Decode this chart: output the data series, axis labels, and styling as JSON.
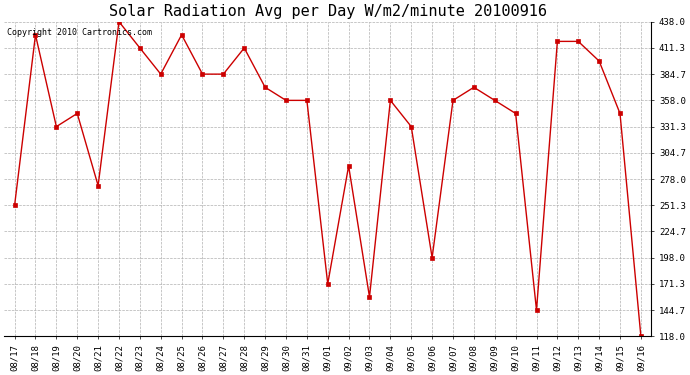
{
  "title": "Solar Radiation Avg per Day W/m2/minute 20100916",
  "copyright": "Copyright 2010 Cartronics.com",
  "labels": [
    "08/17",
    "08/18",
    "08/19",
    "08/20",
    "08/21",
    "08/22",
    "08/23",
    "08/24",
    "08/25",
    "08/26",
    "08/27",
    "08/28",
    "08/29",
    "08/30",
    "08/31",
    "09/01",
    "09/02",
    "09/03",
    "09/04",
    "09/05",
    "09/06",
    "09/07",
    "09/08",
    "09/09",
    "09/10",
    "09/11",
    "09/12",
    "09/13",
    "09/14",
    "09/15",
    "09/16"
  ],
  "values": [
    251.3,
    424.7,
    331.3,
    344.7,
    271.3,
    438.0,
    411.3,
    384.7,
    424.7,
    384.7,
    384.7,
    411.3,
    371.3,
    358.0,
    358.0,
    171.3,
    291.3,
    158.0,
    358.0,
    331.3,
    198.0,
    358.0,
    371.3,
    358.0,
    344.7,
    144.7,
    418.0,
    418.0,
    398.0,
    344.7,
    118.0
  ],
  "line_color": "#cc0000",
  "marker_color": "#cc0000",
  "bg_color": "#ffffff",
  "grid_color": "#b0b0b0",
  "ylim_min": 118.0,
  "ylim_max": 438.0,
  "yticks": [
    118.0,
    144.7,
    171.3,
    198.0,
    224.7,
    251.3,
    278.0,
    304.7,
    331.3,
    358.0,
    384.7,
    411.3,
    438.0
  ],
  "title_fontsize": 11,
  "tick_fontsize": 6.5,
  "copyright_fontsize": 6
}
